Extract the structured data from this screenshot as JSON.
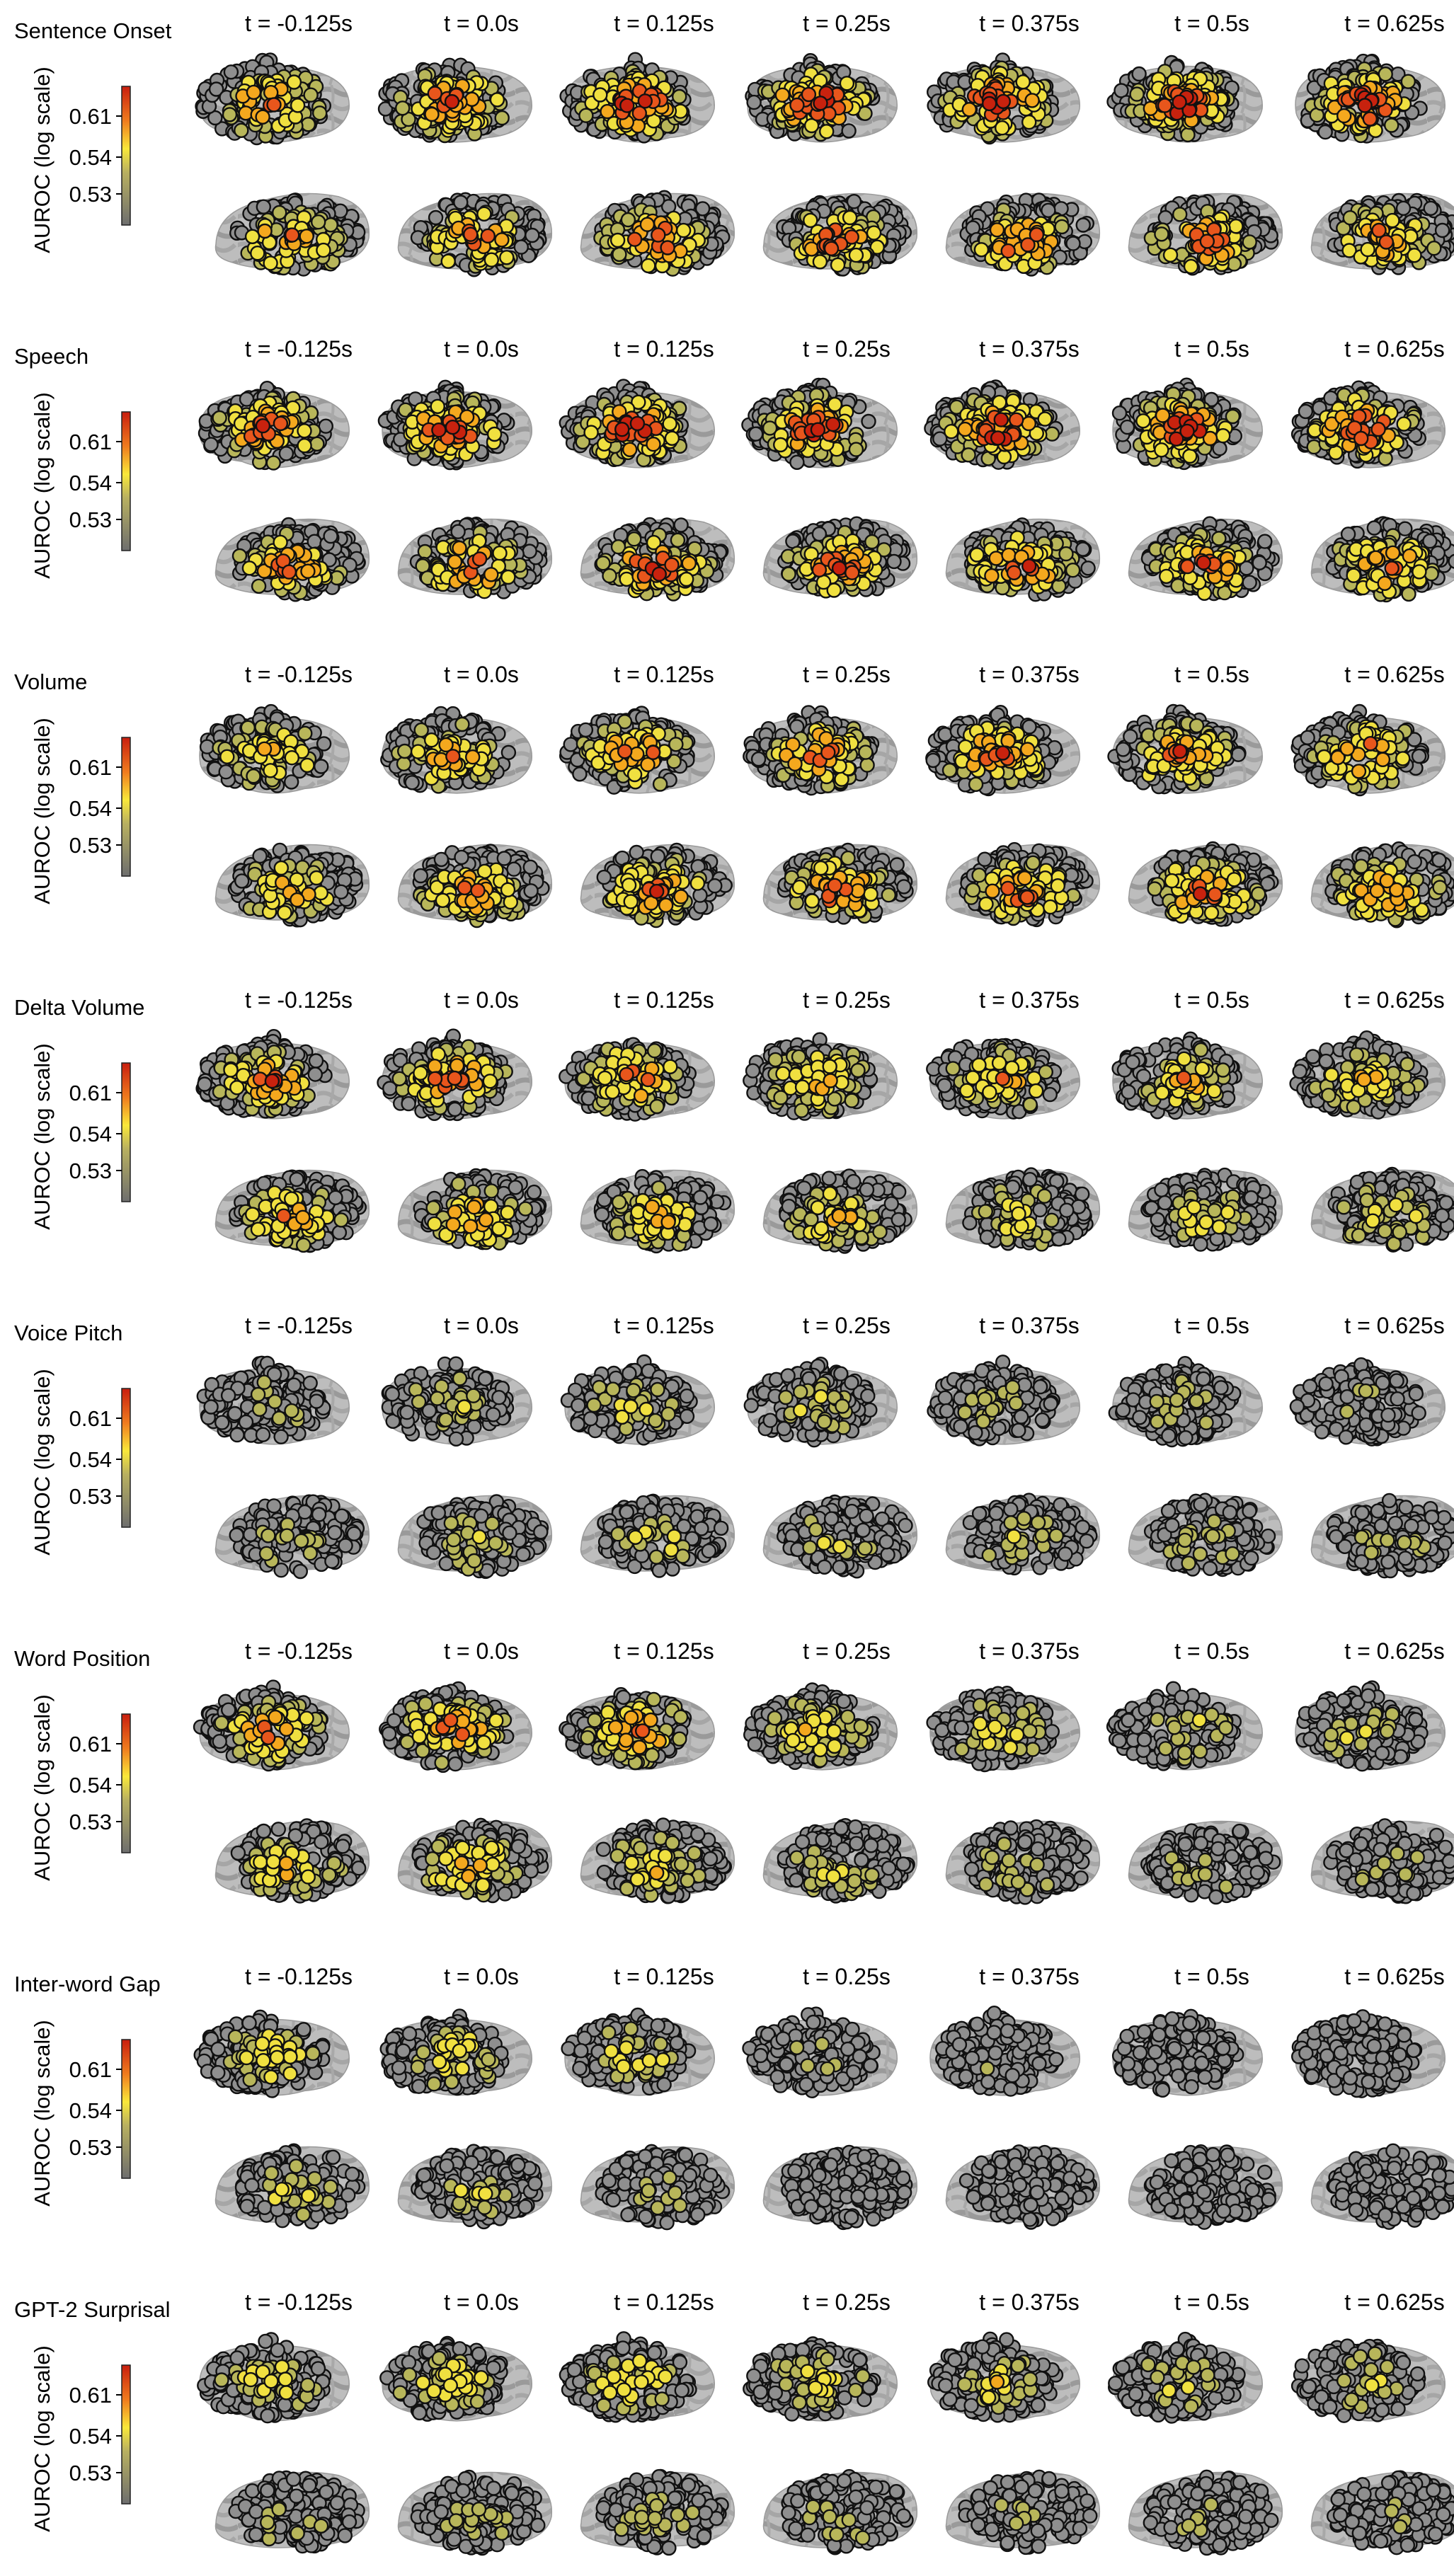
{
  "time_labels": [
    "t = -0.125s",
    "t = 0.0s",
    "t = 0.125s",
    "t = 0.25s",
    "t = 0.375s",
    "t = 0.5s",
    "t = 0.625s"
  ],
  "colorbar": {
    "label": "AUROC (log scale)",
    "ticks": [
      "0.61",
      "0.54",
      "0.53"
    ],
    "colors": [
      "#c81e0f",
      "#f07c1e",
      "#f9e83a",
      "#8c8c8c",
      "#6e6e6e"
    ]
  },
  "electrode_colors": {
    "none": "#8f8f8f",
    "faint": "#b8b65a",
    "low": "#f0e040",
    "mid": "#f4a81e",
    "high": "#e8561c",
    "peak": "#c8220e"
  },
  "rows": [
    {
      "title": "Sentence Onset",
      "strength_lateral": [
        0.72,
        0.82,
        0.9,
        0.9,
        0.92,
        0.9,
        0.88
      ],
      "strength_inferior": [
        0.7,
        0.78,
        0.8,
        0.78,
        0.78,
        0.76,
        0.72
      ]
    },
    {
      "title": "Speech",
      "strength_lateral": [
        0.8,
        0.84,
        0.9,
        0.88,
        0.9,
        0.88,
        0.86
      ],
      "strength_inferior": [
        0.74,
        0.78,
        0.8,
        0.78,
        0.78,
        0.76,
        0.74
      ]
    },
    {
      "title": "Volume",
      "strength_lateral": [
        0.55,
        0.62,
        0.72,
        0.74,
        0.74,
        0.74,
        0.72
      ],
      "strength_inferior": [
        0.6,
        0.64,
        0.72,
        0.74,
        0.72,
        0.72,
        0.7
      ]
    },
    {
      "title": "Delta Volume",
      "strength_lateral": [
        0.72,
        0.74,
        0.7,
        0.58,
        0.56,
        0.54,
        0.5
      ],
      "strength_inferior": [
        0.62,
        0.62,
        0.58,
        0.5,
        0.44,
        0.4,
        0.36
      ]
    },
    {
      "title": "Voice Pitch",
      "strength_lateral": [
        0.2,
        0.3,
        0.34,
        0.3,
        0.26,
        0.22,
        0.18
      ],
      "strength_inferior": [
        0.24,
        0.3,
        0.32,
        0.3,
        0.28,
        0.24,
        0.22
      ]
    },
    {
      "title": "Word Position",
      "strength_lateral": [
        0.68,
        0.74,
        0.72,
        0.5,
        0.4,
        0.32,
        0.3
      ],
      "strength_inferior": [
        0.56,
        0.6,
        0.5,
        0.36,
        0.28,
        0.22,
        0.2
      ]
    },
    {
      "title": "Inter-word Gap",
      "strength_lateral": [
        0.44,
        0.44,
        0.38,
        0.18,
        0.14,
        0.12,
        0.1
      ],
      "strength_inferior": [
        0.3,
        0.3,
        0.22,
        0.12,
        0.1,
        0.08,
        0.06
      ]
    },
    {
      "title": "GPT-2 Surprisal",
      "strength_lateral": [
        0.4,
        0.46,
        0.48,
        0.42,
        0.38,
        0.34,
        0.3
      ],
      "strength_inferior": [
        0.2,
        0.24,
        0.26,
        0.24,
        0.2,
        0.18,
        0.16
      ]
    }
  ]
}
